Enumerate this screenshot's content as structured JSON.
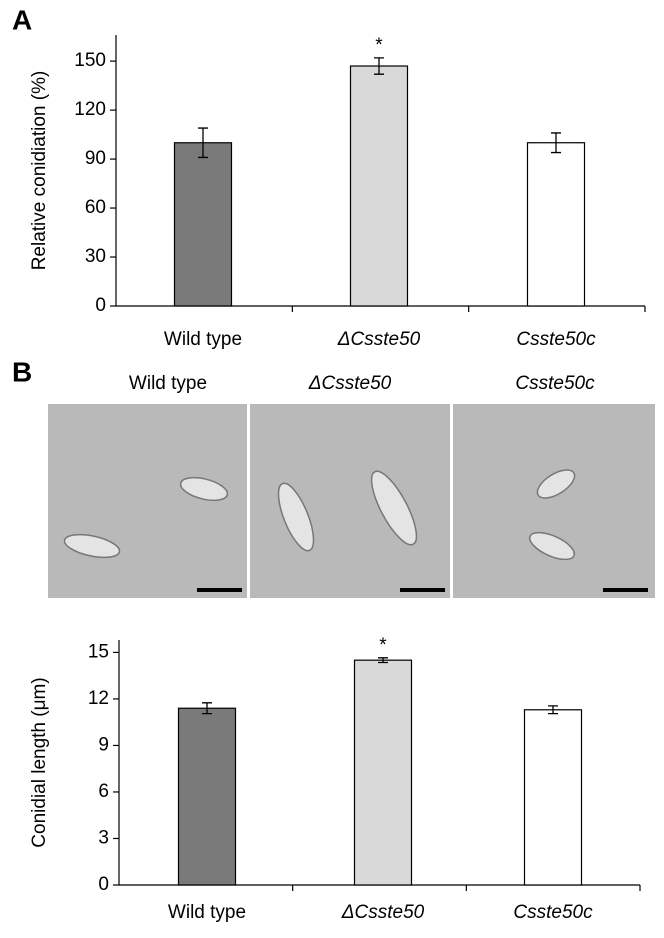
{
  "panels": [
    "A",
    "B"
  ],
  "micrographs": {
    "labels": [
      "Wild type",
      "ΔCsste50",
      "Csste50c"
    ]
  },
  "chart_data": [
    {
      "type": "bar",
      "ylabel": "Relative conidiation (%)",
      "categories": [
        "Wild type",
        "ΔCsste50",
        "Csste50c"
      ],
      "values": [
        100,
        147,
        100
      ],
      "errors": [
        9,
        5,
        6
      ],
      "colors": [
        "#7a7a7a",
        "#d9d9d9",
        "#ffffff"
      ],
      "significance": [
        null,
        "*",
        null
      ],
      "ylim": [
        0,
        166
      ],
      "yticks": [
        0,
        30,
        60,
        90,
        120,
        150
      ]
    },
    {
      "type": "bar",
      "ylabel": "Conidial length (μm)",
      "categories": [
        "Wild type",
        "ΔCsste50",
        "Csste50c"
      ],
      "values": [
        11.4,
        14.5,
        11.3
      ],
      "errors": [
        0.35,
        0.15,
        0.25
      ],
      "colors": [
        "#7a7a7a",
        "#d9d9d9",
        "#ffffff"
      ],
      "significance": [
        null,
        "*",
        null
      ],
      "ylim": [
        0,
        15.8
      ],
      "yticks": [
        0,
        3,
        6,
        9,
        12,
        15
      ]
    }
  ]
}
